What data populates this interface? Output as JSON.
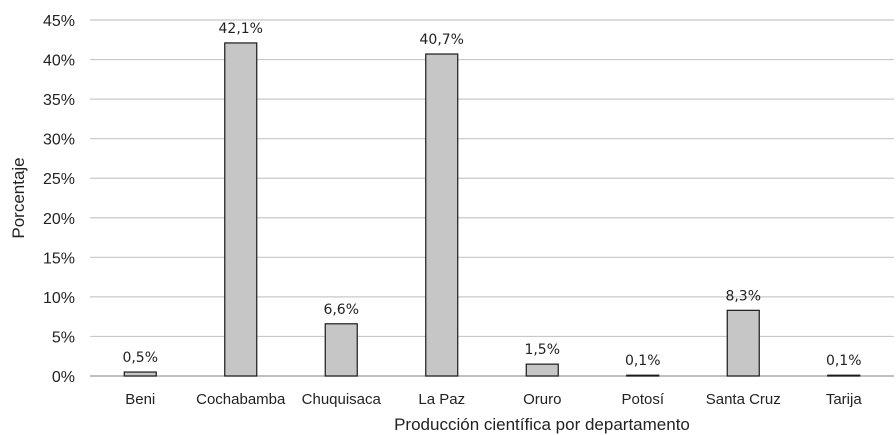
{
  "chart_data": {
    "type": "bar",
    "title": "",
    "xlabel": "Producción científica por departamento",
    "ylabel": "Porcentaje",
    "ylim": [
      0,
      45
    ],
    "yticks": [
      0,
      5,
      10,
      15,
      20,
      25,
      30,
      35,
      40,
      45
    ],
    "ytick_labels": [
      "0%",
      "5%",
      "10%",
      "15%",
      "20%",
      "25%",
      "30%",
      "35%",
      "40%",
      "45%"
    ],
    "grid": true,
    "legend": "none",
    "categories": [
      "Beni",
      "Cochabamba",
      "Chuquisaca",
      "La Paz",
      "Oruro",
      "Potosí",
      "Santa Cruz",
      "Tarija"
    ],
    "values": [
      0.5,
      42.1,
      6.6,
      40.7,
      1.5,
      0.1,
      8.3,
      0.1
    ],
    "data_labels": [
      "0,5%",
      "42,1%",
      "6,6%",
      "40,7%",
      "1,5%",
      "0,1%",
      "8,3%",
      "0,1%"
    ],
    "bar_color": "#c6c6c6",
    "bar_edge_color": "#1a1a1a",
    "grid_color": "#c8c8c8"
  }
}
